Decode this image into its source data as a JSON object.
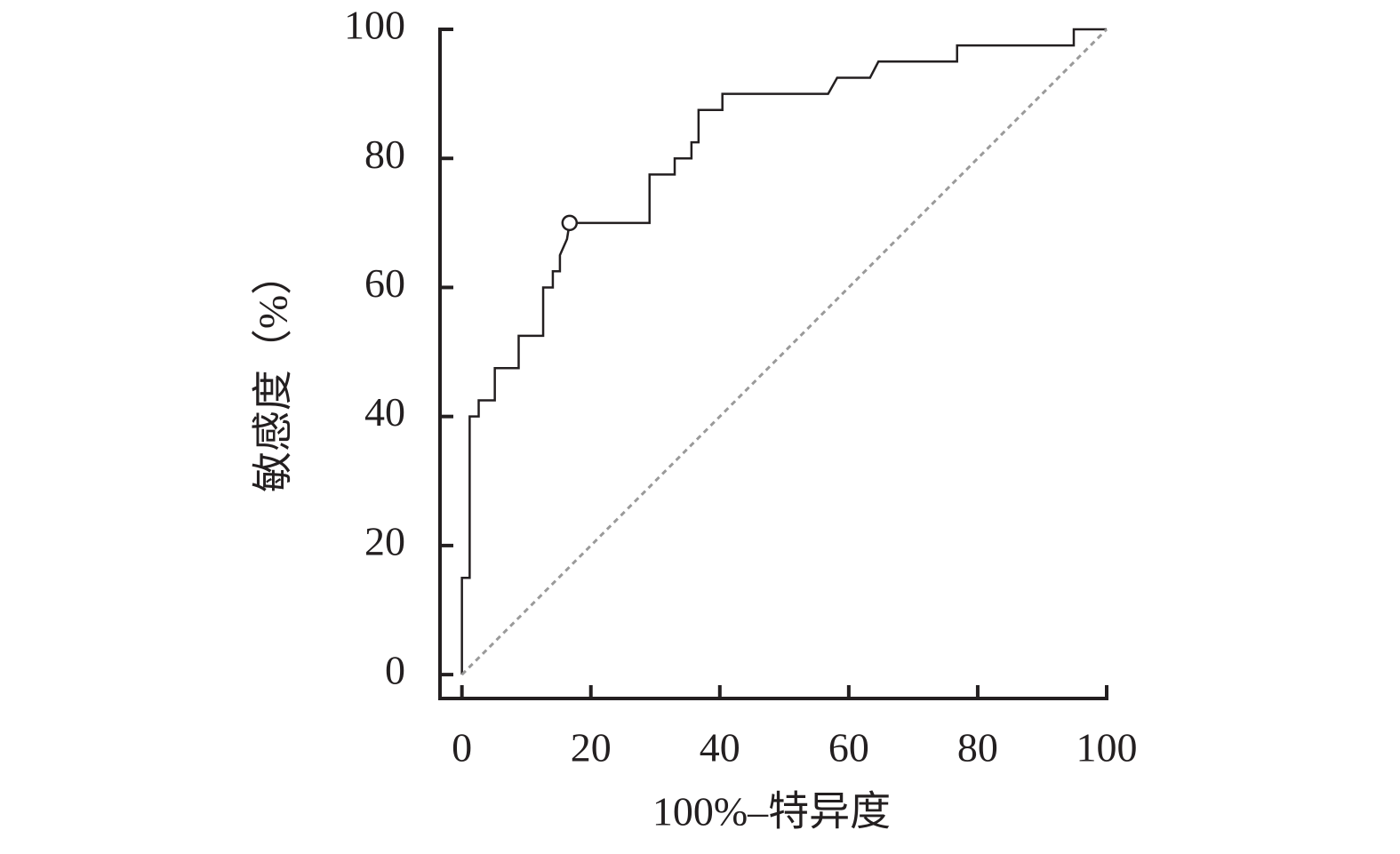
{
  "chart_data": {
    "type": "line",
    "x_label": "100%–特异度",
    "y_label": "敏感度（%）",
    "xlim": [
      -3.4,
      100
    ],
    "ylim": [
      -3.7,
      100
    ],
    "xticks": [
      0,
      20,
      40,
      60,
      80,
      100
    ],
    "yticks": [
      0,
      20,
      40,
      60,
      80,
      100
    ],
    "series": [
      {
        "color": "#231f20",
        "x": [
          0,
          0,
          1.2,
          1.2,
          2.6,
          2.6,
          5.1,
          5.1,
          8.8,
          8.8,
          12.6,
          12.6,
          14.1,
          14.1,
          15.2,
          15.2,
          16.3,
          16.7,
          29.1,
          29.1,
          33,
          33,
          35.6,
          35.6,
          36.7,
          36.7,
          40.4,
          40.4,
          56.8,
          58.2,
          63.3,
          64.6,
          76.8,
          76.8,
          94.9,
          94.9,
          100
        ],
        "values": [
          0,
          15,
          15,
          40,
          40,
          42.5,
          42.5,
          47.5,
          47.5,
          52.5,
          52.5,
          60,
          60,
          62.5,
          62.5,
          65,
          67.5,
          70,
          70,
          77.5,
          77.5,
          80,
          80,
          82.5,
          82.5,
          87.5,
          87.5,
          90,
          90,
          92.5,
          92.5,
          95,
          95,
          97.5,
          97.5,
          100,
          100
        ]
      },
      {
        "color": "#9a9a9a",
        "dashed": true,
        "x": [
          0,
          100
        ],
        "values": [
          0,
          100
        ]
      }
    ],
    "highlight": {
      "x": 16.7,
      "y": 70
    }
  }
}
